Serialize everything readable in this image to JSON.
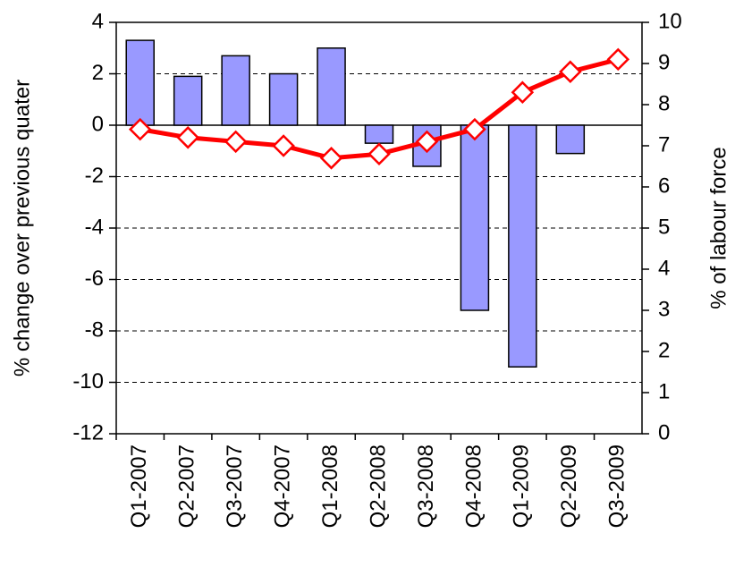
{
  "chart_data": {
    "type": "bar-line",
    "categories": [
      "Q1-2007",
      "Q2-2007",
      "Q3-2007",
      "Q4-2007",
      "Q1-2008",
      "Q2-2008",
      "Q3-2008",
      "Q4-2008",
      "Q1-2009",
      "Q2-2009",
      "Q3-2009"
    ],
    "series": [
      {
        "name": "% change over previous quater",
        "type": "bar",
        "color": "#9999ff",
        "values": [
          3.3,
          1.9,
          2.7,
          2.0,
          3.0,
          -0.7,
          -1.6,
          -7.2,
          -9.4,
          -1.1,
          null
        ]
      },
      {
        "name": "% of labour force",
        "type": "line",
        "axis": "y2",
        "color": "#ff0000",
        "values": [
          7.4,
          7.2,
          7.1,
          7.0,
          6.7,
          6.8,
          7.1,
          7.4,
          8.3,
          8.8,
          9.1
        ]
      }
    ],
    "ylabel": "% change over previous quater",
    "y2label": "% of labour force",
    "ylim": [
      -12,
      4
    ],
    "yticks": [
      -12,
      -10,
      -8,
      -6,
      -4,
      -2,
      0,
      2,
      4
    ],
    "y2lim": [
      0,
      10
    ],
    "y2ticks": [
      0,
      1,
      2,
      3,
      4,
      5,
      6,
      7,
      8,
      9,
      10
    ],
    "grid": true
  }
}
